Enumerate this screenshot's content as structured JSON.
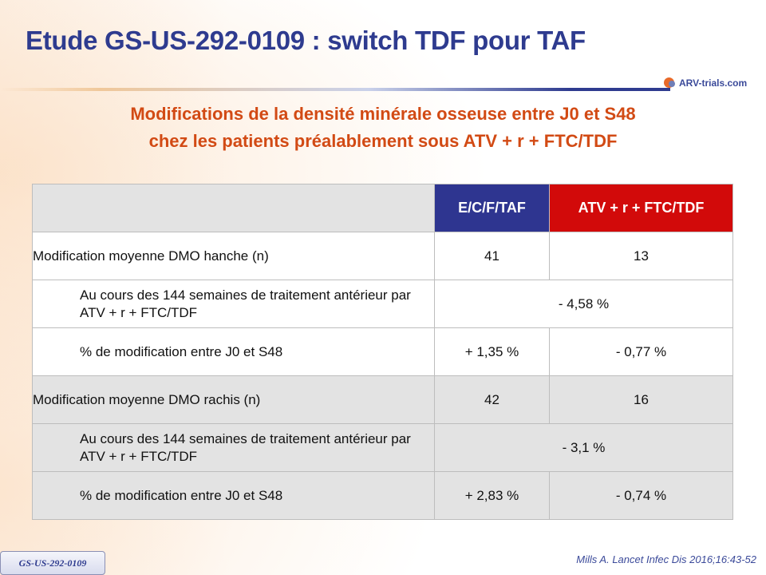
{
  "header": {
    "title": "Etude GS-US-292-0109 : switch TDF pour TAF",
    "logo": "ARV-trials.com"
  },
  "subtitle": {
    "line1": "Modifications de la densité minérale osseuse entre J0 et S48",
    "line2": "chez les patients préalablement sous ATV + r + FTC/TDF"
  },
  "table": {
    "columns": [
      "",
      "E/C/F/TAF",
      "ATV + r + FTC/TDF"
    ],
    "rows": [
      {
        "label": "Modification moyenne DMO hanche (n)",
        "c1": "41",
        "c2": "13",
        "indent": false,
        "shade": "white"
      },
      {
        "label": "Au cours des 144 semaines de traitement antérieur par ATV + r + FTC/TDF",
        "merged": "- 4,58 %",
        "indent": true,
        "shade": "white"
      },
      {
        "label": "% de modification entre J0 et S48",
        "c1": "+ 1,35 %",
        "c2": "- 0,77 %",
        "indent": true,
        "shade": "white"
      },
      {
        "label": "Modification moyenne DMO rachis (n)",
        "c1": "42",
        "c2": "16",
        "indent": false,
        "shade": "gray"
      },
      {
        "label": "Au cours des 144 semaines de traitement antérieur par ATV + r + FTC/TDF",
        "merged": "- 3,1 %",
        "indent": true,
        "shade": "gray"
      },
      {
        "label": "% de modification entre J0 et S48",
        "c1": "+ 2,83 %",
        "c2": "- 0,74 %",
        "indent": true,
        "shade": "gray"
      }
    ],
    "colors": {
      "taf_header": "#2e3590",
      "atv_header": "#d20a0a",
      "shade": "#e3e3e3"
    }
  },
  "footer": {
    "tag": "GS-US-292-0109",
    "citation": "Mills A. Lancet Infec Dis 2016;16:43-52"
  }
}
